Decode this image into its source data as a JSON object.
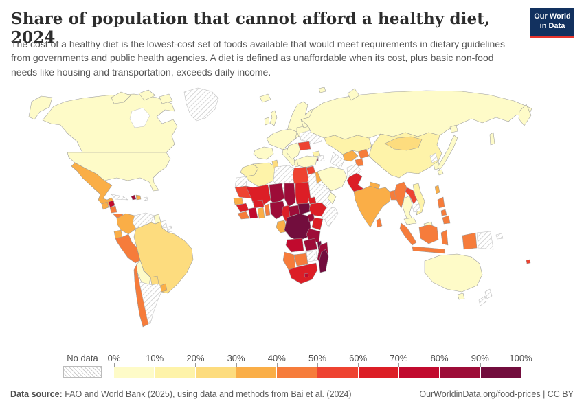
{
  "header": {
    "title": "Share of population that cannot afford a healthy diet, 2024",
    "subtitle": "The cost of a healthy diet is the lowest-cost set of foods available that would meet requirements in dietary guidelines from governments and public health agencies. A diet is defined as unaffordable when its cost, plus basic non-food needs like housing and transportation, exceeds daily income.",
    "logo": {
      "line1": "Our World",
      "line2": "in Data",
      "bg_color": "#12315f",
      "stripe_color": "#e8342c"
    }
  },
  "legend": {
    "no_data_label": "No data",
    "tick_labels": [
      "0%",
      "10%",
      "20%",
      "30%",
      "40%",
      "50%",
      "60%",
      "70%",
      "80%",
      "90%",
      "100%"
    ],
    "colors": [
      "#fefbc8",
      "#fef3a9",
      "#fddc7e",
      "#faae47",
      "#f67c3b",
      "#ee4331",
      "#dc1e26",
      "#c10a2e",
      "#9d0c38",
      "#720d3d"
    ],
    "hatch_line_color": "#cccccc"
  },
  "footer": {
    "source_label": "Data source:",
    "source_text": " FAO and World Bank (2025), using data and methods from Bai et al. (2024)",
    "right_text": "OurWorldinData.org/food-prices | CC BY"
  },
  "chart_data": {
    "type": "choropleth",
    "title": "Share of population that cannot afford a healthy diet",
    "year": "2024",
    "unit": "% of population",
    "legend_bins": [
      {
        "range": "0-10%",
        "color": "#fefbc8"
      },
      {
        "range": "10-20%",
        "color": "#fef3a9"
      },
      {
        "range": "20-30%",
        "color": "#fddc7e"
      },
      {
        "range": "30-40%",
        "color": "#faae47"
      },
      {
        "range": "40-50%",
        "color": "#f67c3b"
      },
      {
        "range": "50-60%",
        "color": "#ee4331"
      },
      {
        "range": "60-70%",
        "color": "#dc1e26"
      },
      {
        "range": "70-80%",
        "color": "#c10a2e"
      },
      {
        "range": "80-90%",
        "color": "#9d0c38"
      },
      {
        "range": "90-100%",
        "color": "#720d3d"
      }
    ],
    "regions": [
      {
        "name": "United States",
        "bin": 0,
        "range": "0-10%"
      },
      {
        "name": "Canada",
        "bin": 0,
        "range": "0-10%"
      },
      {
        "name": "Mexico",
        "bin": 3,
        "range": "30-40%"
      },
      {
        "name": "Guatemala",
        "bin": 3,
        "range": "30-40%"
      },
      {
        "name": "Honduras",
        "bin": 7,
        "range": "70-80%"
      },
      {
        "name": "Nicaragua",
        "bin": 4,
        "range": "40-50%"
      },
      {
        "name": "Costa Rica & Panama",
        "bin": 4,
        "range": "40-50%"
      },
      {
        "name": "Haiti",
        "bin": 8,
        "range": "80-90%"
      },
      {
        "name": "Dominican Republic",
        "bin": 3,
        "range": "30-40%"
      },
      {
        "name": "Colombia",
        "bin": 3,
        "range": "30-40%"
      },
      {
        "name": "Guyana",
        "bin": 0,
        "range": "0-10%"
      },
      {
        "name": "Brazil",
        "bin": 2,
        "range": "20-30%"
      },
      {
        "name": "Ecuador",
        "bin": 3,
        "range": "30-40%"
      },
      {
        "name": "Peru",
        "bin": 4,
        "range": "40-50%"
      },
      {
        "name": "Bolivia",
        "bin": 0,
        "range": "0-10%"
      },
      {
        "name": "Paraguay",
        "bin": 2,
        "range": "20-30%"
      },
      {
        "name": "Uruguay",
        "bin": 3,
        "range": "30-40%"
      },
      {
        "name": "Chile",
        "bin": 4,
        "range": "40-50%"
      },
      {
        "name": "Iceland",
        "bin": 0,
        "range": "0-10%"
      },
      {
        "name": "United Kingdom",
        "bin": 0,
        "range": "0-10%"
      },
      {
        "name": "Ireland",
        "bin": 0,
        "range": "0-10%"
      },
      {
        "name": "Scandinavia",
        "bin": 0,
        "range": "0-10%"
      },
      {
        "name": "Denmark",
        "bin": 0,
        "range": "0-10%"
      },
      {
        "name": "Western Europe",
        "bin": 0,
        "range": "0-10%"
      },
      {
        "name": "Iberia",
        "bin": 0,
        "range": "0-10%"
      },
      {
        "name": "Italy",
        "bin": 0,
        "range": "0-10%"
      },
      {
        "name": "Central Europe",
        "bin": 0,
        "range": "0-10%"
      },
      {
        "name": "Baltics",
        "bin": 0,
        "range": "0-10%"
      },
      {
        "name": "Balkans",
        "bin": 0,
        "range": "0-10%"
      },
      {
        "name": "Greece",
        "bin": 0,
        "range": "0-10%"
      },
      {
        "name": "Romania",
        "bin": 5,
        "range": "50-60%"
      },
      {
        "name": "Russia",
        "bin": 0,
        "range": "0-10%"
      },
      {
        "name": "Kazakhstan",
        "bin": 1,
        "range": "10-20%"
      },
      {
        "name": "Uzbekistan",
        "bin": 3,
        "range": "30-40%"
      },
      {
        "name": "Kyrgyzstan & Tajikistan",
        "bin": 4,
        "range": "40-50%"
      },
      {
        "name": "Georgia",
        "bin": 1,
        "range": "10-20%"
      },
      {
        "name": "Armenia",
        "bin": 8,
        "range": "80-90%"
      },
      {
        "name": "Turkey",
        "bin": 0,
        "range": "0-10%"
      },
      {
        "name": "Syria",
        "bin": 5,
        "range": "50-60%"
      },
      {
        "name": "Iraq",
        "bin": 3,
        "range": "30-40%"
      },
      {
        "name": "Iran",
        "bin": 0,
        "range": "0-10%"
      },
      {
        "name": "Pakistan",
        "bin": 6,
        "range": "60-70%"
      },
      {
        "name": "Oman & UAE",
        "bin": 0,
        "range": "0-10%"
      },
      {
        "name": "India",
        "bin": 3,
        "range": "30-40%"
      },
      {
        "name": "Nepal",
        "bin": 3,
        "range": "30-40%"
      },
      {
        "name": "Bangladesh",
        "bin": 4,
        "range": "40-50%"
      },
      {
        "name": "Sri Lanka",
        "bin": 4,
        "range": "40-50%"
      },
      {
        "name": "China",
        "bin": 1,
        "range": "10-20%"
      },
      {
        "name": "Mongolia",
        "bin": 2,
        "range": "20-30%"
      },
      {
        "name": "South Korea",
        "bin": 0,
        "range": "0-10%"
      },
      {
        "name": "Japan",
        "bin": 0,
        "range": "0-10%"
      },
      {
        "name": "Taiwan",
        "bin": 3,
        "range": "30-40%"
      },
      {
        "name": "Myanmar",
        "bin": 4,
        "range": "40-50%"
      },
      {
        "name": "Thailand",
        "bin": 0,
        "range": "0-10%"
      },
      {
        "name": "Laos",
        "bin": 5,
        "range": "50-60%"
      },
      {
        "name": "Vietnam",
        "bin": 1,
        "range": "10-20%"
      },
      {
        "name": "Malaysia",
        "bin": 0,
        "range": "0-10%"
      },
      {
        "name": "Indonesia",
        "bin": 4,
        "range": "40-50%"
      },
      {
        "name": "Philippines",
        "bin": 4,
        "range": "40-50%"
      },
      {
        "name": "Morocco",
        "bin": 1,
        "range": "10-20%"
      },
      {
        "name": "Algeria",
        "bin": 1,
        "range": "10-20%"
      },
      {
        "name": "Tunisia",
        "bin": 2,
        "range": "20-30%"
      },
      {
        "name": "Egypt",
        "bin": 5,
        "range": "50-60%"
      },
      {
        "name": "Mauritania",
        "bin": 5,
        "range": "50-60%"
      },
      {
        "name": "Mali",
        "bin": 6,
        "range": "60-70%"
      },
      {
        "name": "Niger",
        "bin": 8,
        "range": "80-90%"
      },
      {
        "name": "Chad",
        "bin": 8,
        "range": "80-90%"
      },
      {
        "name": "Sudan",
        "bin": 6,
        "range": "60-70%"
      },
      {
        "name": "South Sudan",
        "bin": 9,
        "range": "90-100%"
      },
      {
        "name": "Eritrea",
        "bin": 6,
        "range": "60-70%"
      },
      {
        "name": "Ethiopia",
        "bin": 6,
        "range": "60-70%"
      },
      {
        "name": "Senegal",
        "bin": 3,
        "range": "30-40%"
      },
      {
        "name": "Guinea",
        "bin": 6,
        "range": "60-70%"
      },
      {
        "name": "Sierra Leone & Liberia",
        "bin": 4,
        "range": "40-50%"
      },
      {
        "name": "Cote d'Ivoire",
        "bin": 7,
        "range": "70-80%"
      },
      {
        "name": "Ghana",
        "bin": 3,
        "range": "30-40%"
      },
      {
        "name": "Burkina Faso",
        "bin": 6,
        "range": "60-70%"
      },
      {
        "name": "Togo & Benin",
        "bin": 4,
        "range": "40-50%"
      },
      {
        "name": "Nigeria",
        "bin": 8,
        "range": "80-90%"
      },
      {
        "name": "Cameroon",
        "bin": 6,
        "range": "60-70%"
      },
      {
        "name": "Central African Republic",
        "bin": 8,
        "range": "80-90%"
      },
      {
        "name": "Gabon & Congo",
        "bin": 3,
        "range": "30-40%"
      },
      {
        "name": "DR Congo",
        "bin": 9,
        "range": "90-100%"
      },
      {
        "name": "Uganda",
        "bin": 8,
        "range": "80-90%"
      },
      {
        "name": "Kenya",
        "bin": 6,
        "range": "60-70%"
      },
      {
        "name": "Tanzania",
        "bin": 8,
        "range": "80-90%"
      },
      {
        "name": "Angola",
        "bin": 7,
        "range": "70-80%"
      },
      {
        "name": "Zambia",
        "bin": 8,
        "range": "80-90%"
      },
      {
        "name": "Malawi",
        "bin": 9,
        "range": "90-100%"
      },
      {
        "name": "Mozambique",
        "bin": 8,
        "range": "80-90%"
      },
      {
        "name": "Botswana",
        "bin": 4,
        "range": "40-50%"
      },
      {
        "name": "Namibia",
        "bin": 4,
        "range": "40-50%"
      },
      {
        "name": "South Africa",
        "bin": 6,
        "range": "60-70%"
      },
      {
        "name": "Lesotho",
        "bin": 7,
        "range": "70-80%"
      },
      {
        "name": "Madagascar",
        "bin": 9,
        "range": "90-100%"
      },
      {
        "name": "Australia",
        "bin": 0,
        "range": "0-10%"
      },
      {
        "name": "Fiji",
        "bin": 5,
        "range": "50-60%"
      }
    ],
    "no_data_regions": [
      "Greenland",
      "Cuba",
      "Puerto Rico",
      "Venezuela",
      "Suriname",
      "French Guiana",
      "Argentina",
      "Ukraine",
      "Turkmenistan",
      "Azerbaijan",
      "Afghanistan",
      "Saudi Arabia",
      "Yemen",
      "Somalia",
      "Libya",
      "Western Sahara",
      "Zimbabwe",
      "Cambodia",
      "North Korea",
      "Papua New Guinea",
      "New Zealand"
    ],
    "source": "FAO and World Bank (2025), using data and methods from Bai et al. (2024)"
  }
}
